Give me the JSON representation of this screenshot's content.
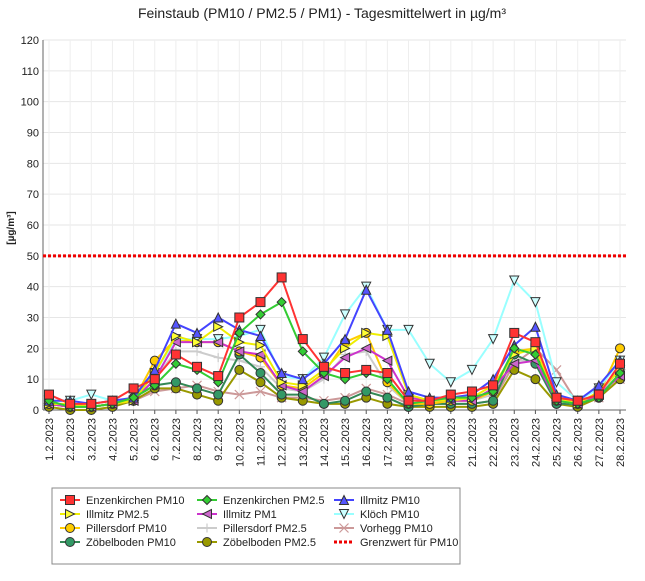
{
  "chart_data": {
    "type": "line",
    "title": "Feinstaub (PM10 / PM2.5 / PM1) -  Tagesmittelwert in µg/m³",
    "ylabel": "[µg/m³]",
    "xlabel": "",
    "ylim": [
      0,
      120
    ],
    "yticks": [
      0,
      10,
      20,
      30,
      40,
      50,
      60,
      70,
      80,
      90,
      100,
      110,
      120
    ],
    "grid": true,
    "legend_position": "bottom",
    "categories": [
      "1.2.2023",
      "2.2.2023",
      "3.2.2023",
      "4.2.2023",
      "5.2.2023",
      "6.2.2023",
      "7.2.2023",
      "8.2.2023",
      "9.2.2023",
      "10.2.2023",
      "11.2.2023",
      "12.2.2023",
      "13.2.2023",
      "14.2.2023",
      "15.2.2023",
      "16.2.2023",
      "17.2.2023",
      "18.2.2023",
      "19.2.2023",
      "20.2.2023",
      "21.2.2023",
      "22.2.2023",
      "23.2.2023",
      "24.2.2023",
      "25.2.2023",
      "26.2.2023",
      "27.2.2023",
      "28.2.2023"
    ],
    "series": [
      {
        "name": "Enzenkirchen PM10",
        "color": "#ff3333",
        "marker": "square",
        "fill": "#ff3333",
        "values": [
          5,
          2,
          2,
          3,
          7,
          10,
          18,
          14,
          11,
          30,
          35,
          43,
          23,
          14,
          12,
          13,
          12,
          3,
          3,
          5,
          6,
          8,
          25,
          22,
          4,
          3,
          5,
          15
        ]
      },
      {
        "name": "Enzenkirchen PM2.5",
        "color": "#33cc33",
        "marker": "diamond",
        "fill": "#33cc33",
        "values": [
          3,
          1,
          1,
          2,
          4,
          8,
          15,
          13,
          9,
          25,
          31,
          35,
          19,
          12,
          10,
          12,
          10,
          2,
          3,
          4,
          4,
          6,
          20,
          18,
          3,
          2,
          4,
          12
        ]
      },
      {
        "name": "Illmitz PM10",
        "color": "#4444ff",
        "marker": "triangle-up",
        "fill": "#5555ff",
        "values": [
          3,
          3,
          2,
          3,
          4,
          13,
          28,
          25,
          30,
          26,
          24,
          12,
          10,
          15,
          23,
          39,
          26,
          6,
          4,
          4,
          5,
          10,
          21,
          27,
          5,
          3,
          8,
          16
        ]
      },
      {
        "name": "Illmitz PM2.5",
        "color": "#eeee00",
        "marker": "triangle-right",
        "fill": "#ffff33",
        "values": [
          2,
          2,
          1,
          2,
          3,
          12,
          24,
          22,
          27,
          22,
          21,
          9,
          8,
          13,
          20,
          25,
          24,
          5,
          3,
          3,
          4,
          8,
          18,
          20,
          4,
          2,
          6,
          13
        ]
      },
      {
        "name": "Illmitz PM1",
        "color": "#cc33cc",
        "marker": "triangle-left",
        "fill": "#cc66cc",
        "values": [
          2,
          1,
          1,
          2,
          3,
          10,
          22,
          22,
          22,
          19,
          18,
          8,
          6,
          11,
          17,
          20,
          16,
          4,
          3,
          3,
          3,
          7,
          15,
          16,
          3,
          2,
          5,
          11
        ]
      },
      {
        "name": "Klöch PM10",
        "color": "#99ffff",
        "marker": "triangle-down",
        "fill": "#ccffff",
        "values": [
          3,
          3,
          5,
          3,
          3,
          12,
          23,
          23,
          23,
          24,
          26,
          11,
          10,
          17,
          31,
          40,
          26,
          26,
          15,
          9,
          13,
          23,
          42,
          35,
          9,
          3,
          7,
          16
        ]
      },
      {
        "name": "Pillersdorf PM10",
        "color": "#ffcc00",
        "marker": "circle",
        "fill": "#ffcc00",
        "values": [
          2,
          1,
          1,
          2,
          3,
          16,
          23,
          22,
          22,
          19,
          17,
          8,
          7,
          12,
          22,
          25,
          9,
          2,
          2,
          3,
          3,
          6,
          19,
          20,
          3,
          2,
          5,
          20
        ]
      },
      {
        "name": "Pillersdorf PM2.5",
        "color": "#cccccc",
        "marker": "plus",
        "fill": "#cccccc",
        "values": [
          2,
          1,
          1,
          2,
          3,
          10,
          19,
          19,
          17,
          16,
          14,
          7,
          6,
          10,
          18,
          19,
          8,
          2,
          2,
          3,
          3,
          5,
          16,
          16,
          3,
          2,
          4,
          14
        ]
      },
      {
        "name": "Vorhegg PM10",
        "color": "#cc9999",
        "marker": "x",
        "fill": "#cc9999",
        "values": [
          2,
          1,
          1,
          2,
          3,
          6,
          7,
          8,
          6,
          5,
          6,
          4,
          4,
          3,
          4,
          7,
          5,
          2,
          2,
          2,
          2,
          3,
          15,
          20,
          13,
          2,
          4,
          10
        ]
      },
      {
        "name": "Zöbelboden PM10",
        "color": "#338855",
        "marker": "circle",
        "fill": "#339966",
        "values": [
          2,
          1,
          1,
          2,
          4,
          8,
          9,
          7,
          5,
          18,
          12,
          5,
          5,
          2,
          3,
          6,
          4,
          1,
          2,
          2,
          2,
          3,
          18,
          15,
          2,
          2,
          4,
          12
        ]
      },
      {
        "name": "Zöbelboden PM2.5",
        "color": "#999900",
        "marker": "circle",
        "fill": "#999900",
        "values": [
          1,
          0,
          0,
          1,
          3,
          7,
          7,
          5,
          3,
          13,
          9,
          4,
          3,
          2,
          2,
          4,
          2,
          1,
          1,
          1,
          1,
          2,
          13,
          10,
          2,
          1,
          4,
          10
        ]
      }
    ],
    "threshold": {
      "name": "Grenzwert für PM10",
      "value": 50,
      "color": "#ee0000"
    }
  }
}
